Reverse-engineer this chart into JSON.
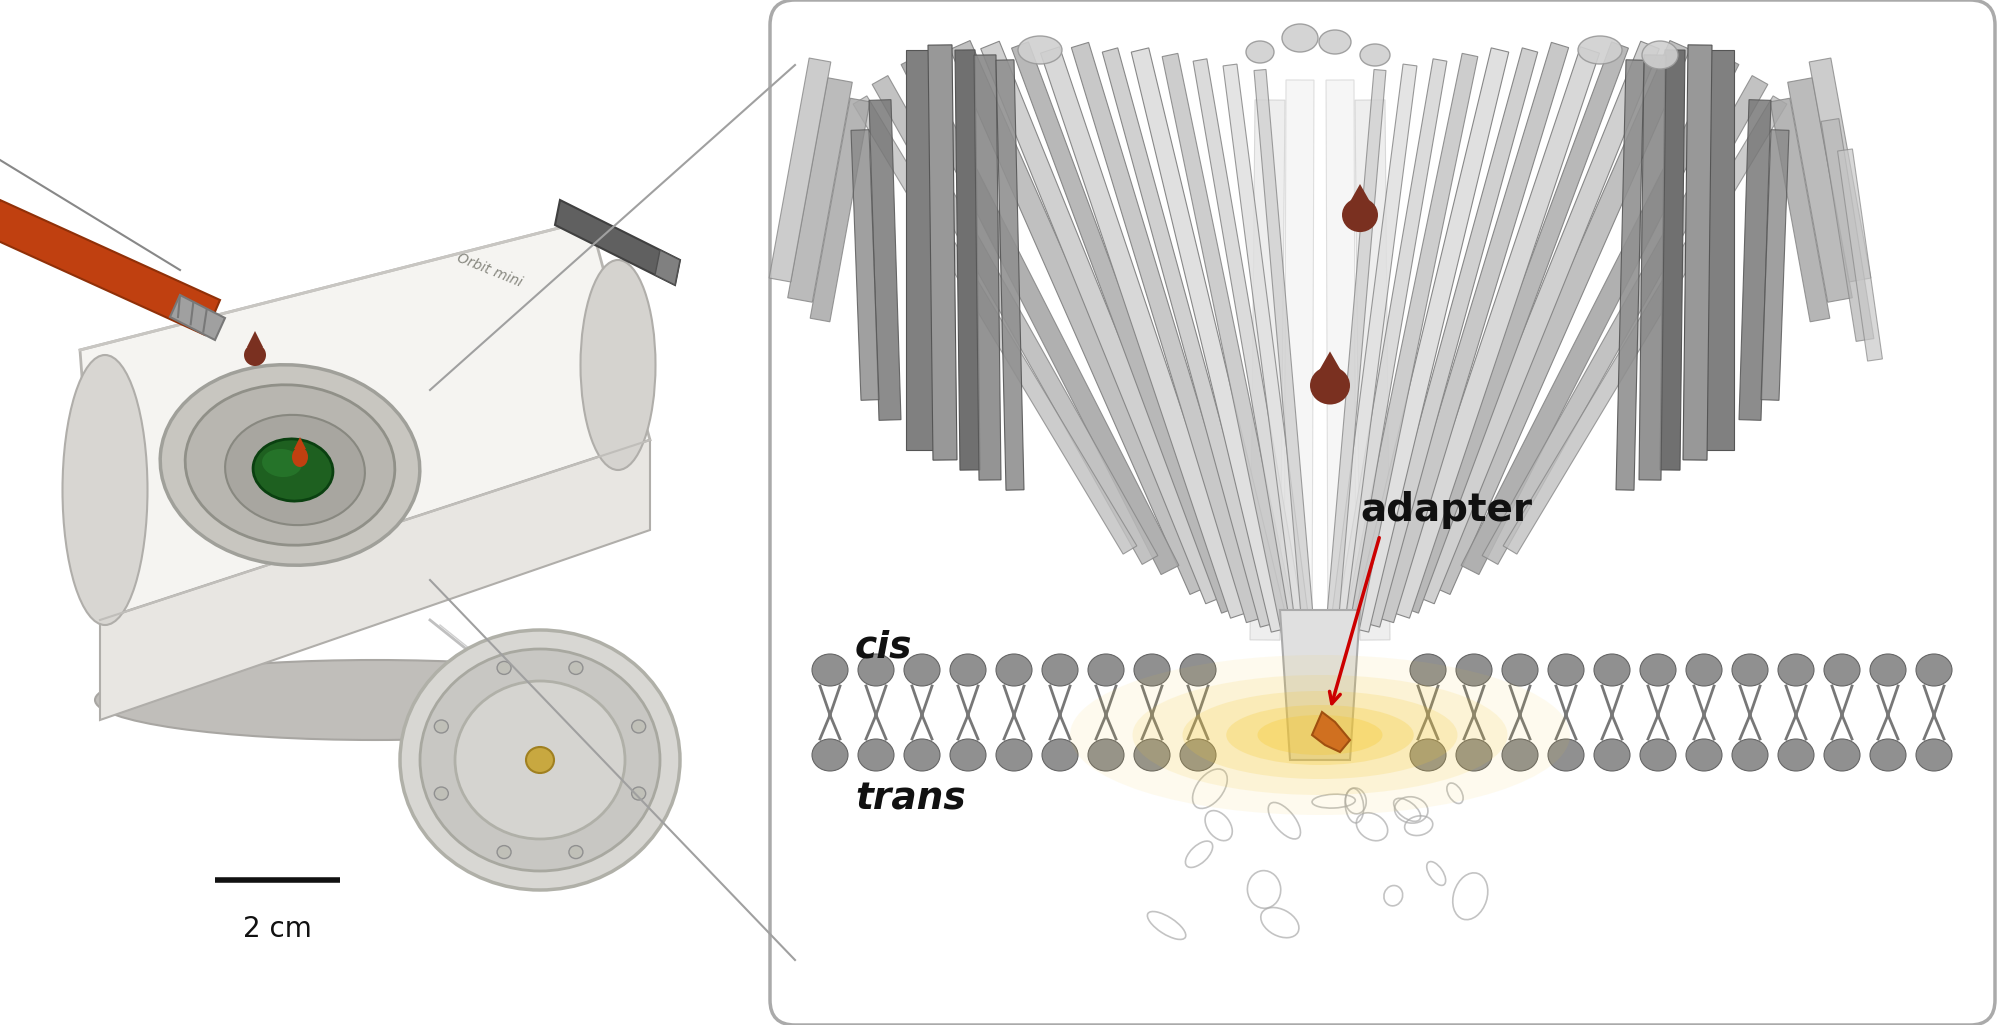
{
  "background_color": "#ffffff",
  "figure_width": 20.0,
  "figure_height": 10.25,
  "scale_bar_text": "2 cm",
  "cis_label": "cis",
  "trans_label": "trans",
  "adapter_label": "adapter",
  "arrow_color": "#cc0000",
  "drop_color": "#7a3020",
  "membrane_head_color": "#909090",
  "adapter_glow_color": "#f5c830",
  "adapter_color": "#d07020",
  "box_edge_color": "#aaaaaa",
  "box_fill_color": "#ffffff",
  "protein_colors": [
    "#e8e8e8",
    "#d8d8d8",
    "#c8c8c8",
    "#b8b8b8",
    "#a8a8a8",
    "#f0f0f0"
  ],
  "protein_edge": "#888888",
  "orbit_mini_label": "Orbit mini",
  "device_body_color": "#e8e6e2",
  "device_shadow_color": "#c0beba",
  "device_top_color": "#f5f4f1",
  "well_color": "#b0aeaa",
  "electrode_color": "#2a6a2a",
  "strip_color": "#c04010",
  "strip_metal_color": "#909090",
  "disk_color": "#d0cfcb",
  "disk_rim_color": "#b0b0a8",
  "pen_color": "#606060"
}
